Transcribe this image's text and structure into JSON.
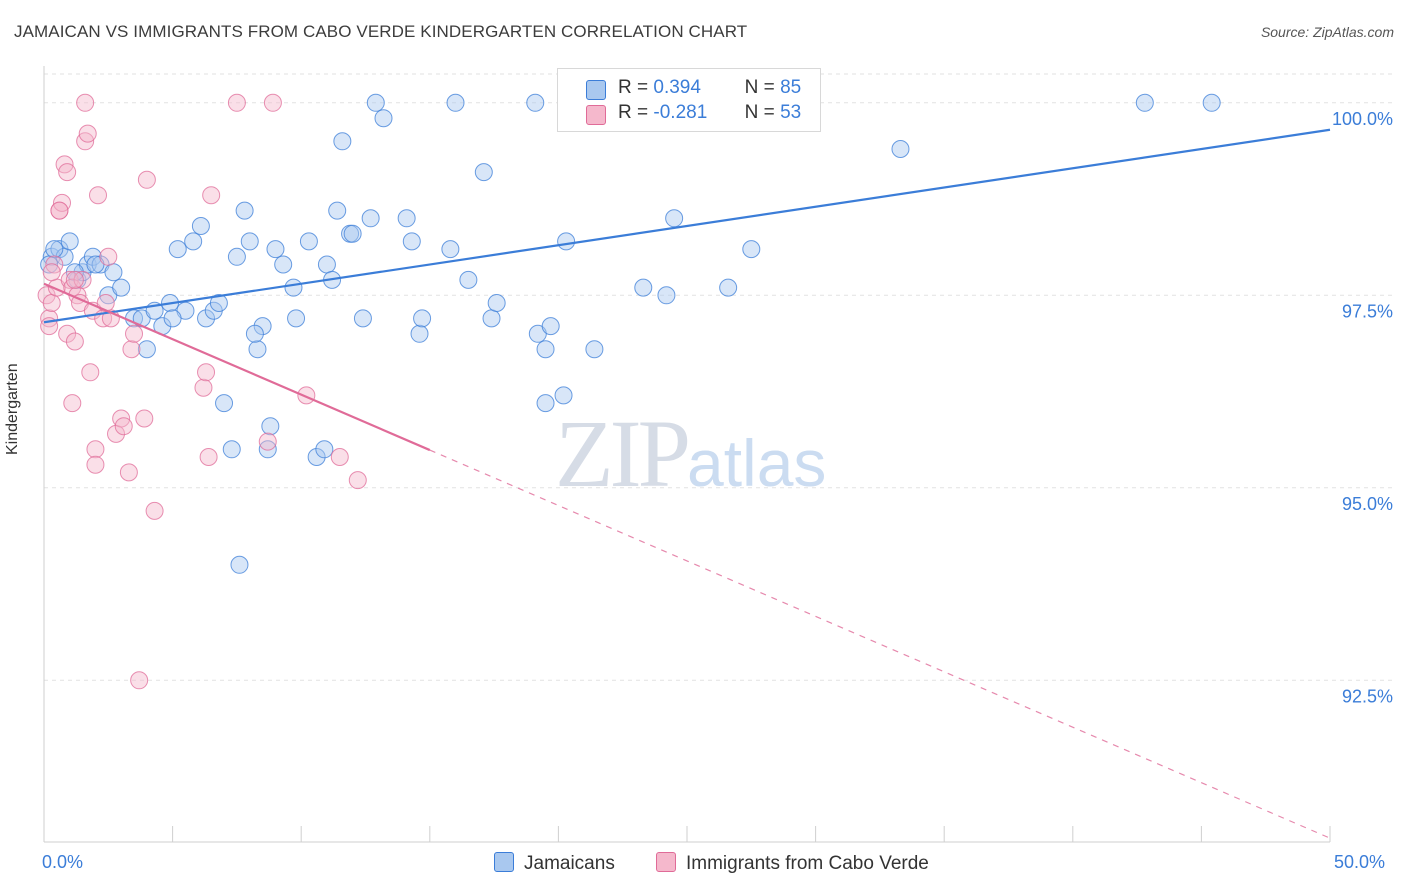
{
  "header": {
    "title": "JAMAICAN VS IMMIGRANTS FROM CABO VERDE KINDERGARTEN CORRELATION CHART",
    "source": "Source: ZipAtlas.com"
  },
  "watermark": {
    "zip": "ZIP",
    "atlas": "atlas"
  },
  "legend": {
    "r_label": "R =",
    "n_label": "N =",
    "jamaicans": {
      "r": "0.394",
      "n": "85"
    },
    "caboverde": {
      "r": "-0.281",
      "n": "53"
    }
  },
  "colors": {
    "blue": "#3b7dd8",
    "blue_fill": "#a9c8ef",
    "pink": "#e06b98",
    "pink_fill": "#f5b8cc",
    "grid": "#e2e2e2"
  },
  "chart_data": {
    "type": "scatter",
    "title": "JAMAICAN VS IMMIGRANTS FROM CABO VERDE KINDERGARTEN CORRELATION CHART",
    "xlabel": "",
    "ylabel": "Kindergarten",
    "xlim": [
      0,
      50
    ],
    "ylim": [
      90.4,
      100.4
    ],
    "x_tick_labels": [
      "0.0%",
      "50.0%"
    ],
    "y_ticks": [
      92.5,
      95.0,
      97.5,
      100.0
    ],
    "y_tick_labels": [
      "92.5%",
      "95.0%",
      "97.5%",
      "100.0%"
    ],
    "grid": true,
    "series": [
      {
        "name": "Jamaicans",
        "color": "#3b7dd8",
        "trend": {
          "x": [
            0,
            50
          ],
          "y": [
            97.15,
            99.65
          ],
          "dashed_from": null
        },
        "points": [
          [
            0.3,
            98.0
          ],
          [
            0.6,
            98.1
          ],
          [
            0.8,
            98.0
          ],
          [
            1.0,
            98.2
          ],
          [
            1.3,
            97.7
          ],
          [
            1.5,
            97.8
          ],
          [
            1.7,
            97.9
          ],
          [
            1.9,
            98.0
          ],
          [
            2.2,
            97.9
          ],
          [
            2.5,
            97.5
          ],
          [
            2.7,
            97.8
          ],
          [
            3.0,
            97.6
          ],
          [
            3.5,
            97.2
          ],
          [
            3.8,
            97.2
          ],
          [
            4.0,
            96.8
          ],
          [
            4.3,
            97.3
          ],
          [
            4.6,
            97.1
          ],
          [
            4.9,
            97.4
          ],
          [
            5.2,
            98.1
          ],
          [
            5.5,
            97.3
          ],
          [
            5.8,
            98.2
          ],
          [
            6.1,
            98.4
          ],
          [
            6.3,
            97.2
          ],
          [
            6.6,
            97.3
          ],
          [
            6.8,
            97.4
          ],
          [
            7.0,
            96.1
          ],
          [
            7.3,
            95.5
          ],
          [
            7.5,
            98.0
          ],
          [
            7.6,
            94.0
          ],
          [
            7.8,
            98.6
          ],
          [
            8.0,
            98.2
          ],
          [
            8.3,
            96.8
          ],
          [
            8.5,
            97.1
          ],
          [
            8.7,
            95.5
          ],
          [
            8.8,
            95.8
          ],
          [
            9.0,
            98.1
          ],
          [
            9.3,
            97.9
          ],
          [
            9.7,
            97.6
          ],
          [
            9.8,
            97.2
          ],
          [
            10.3,
            98.2
          ],
          [
            10.6,
            95.4
          ],
          [
            10.9,
            95.5
          ],
          [
            11.0,
            97.9
          ],
          [
            11.2,
            97.7
          ],
          [
            11.4,
            98.6
          ],
          [
            11.6,
            99.5
          ],
          [
            11.9,
            98.3
          ],
          [
            12.4,
            97.2
          ],
          [
            12.7,
            98.5
          ],
          [
            12.9,
            100.0
          ],
          [
            13.2,
            99.8
          ],
          [
            14.1,
            98.5
          ],
          [
            14.3,
            98.2
          ],
          [
            14.6,
            97.0
          ],
          [
            14.7,
            97.2
          ],
          [
            15.8,
            98.1
          ],
          [
            16.0,
            100.0
          ],
          [
            16.5,
            97.7
          ],
          [
            17.1,
            99.1
          ],
          [
            17.4,
            97.2
          ],
          [
            17.6,
            97.4
          ],
          [
            19.1,
            100.0
          ],
          [
            19.2,
            97.0
          ],
          [
            19.5,
            96.8
          ],
          [
            19.7,
            97.1
          ],
          [
            19.5,
            96.1
          ],
          [
            20.2,
            96.2
          ],
          [
            20.3,
            98.2
          ],
          [
            21.4,
            96.8
          ],
          [
            23.3,
            97.6
          ],
          [
            24.2,
            97.5
          ],
          [
            24.5,
            98.5
          ],
          [
            26.6,
            97.6
          ],
          [
            27.3,
            100.0
          ],
          [
            27.5,
            98.1
          ],
          [
            33.3,
            99.4
          ],
          [
            42.8,
            100.0
          ],
          [
            45.4,
            100.0
          ],
          [
            0.2,
            97.9
          ],
          [
            0.4,
            98.1
          ],
          [
            1.2,
            97.8
          ],
          [
            2.0,
            97.9
          ],
          [
            5.0,
            97.2
          ],
          [
            12.0,
            98.3
          ],
          [
            8.2,
            97.0
          ]
        ]
      },
      {
        "name": "Immigrants from Cabo Verde",
        "color": "#e06b98",
        "trend": {
          "x": [
            0,
            50
          ],
          "y": [
            97.65,
            90.45
          ],
          "dashed_from": 15
        },
        "points": [
          [
            0.1,
            97.5
          ],
          [
            0.2,
            97.2
          ],
          [
            0.3,
            97.4
          ],
          [
            0.4,
            97.9
          ],
          [
            0.5,
            97.6
          ],
          [
            0.6,
            98.6
          ],
          [
            0.7,
            98.7
          ],
          [
            0.8,
            99.2
          ],
          [
            0.9,
            99.1
          ],
          [
            0.9,
            97.0
          ],
          [
            1.0,
            97.7
          ],
          [
            1.1,
            96.1
          ],
          [
            1.1,
            97.6
          ],
          [
            1.2,
            96.9
          ],
          [
            1.3,
            97.5
          ],
          [
            1.4,
            97.4
          ],
          [
            1.5,
            97.7
          ],
          [
            1.6,
            99.5
          ],
          [
            1.7,
            99.6
          ],
          [
            1.8,
            96.5
          ],
          [
            1.9,
            97.3
          ],
          [
            2.0,
            95.5
          ],
          [
            2.0,
            95.3
          ],
          [
            2.1,
            98.8
          ],
          [
            2.3,
            97.2
          ],
          [
            2.5,
            98.0
          ],
          [
            2.6,
            97.2
          ],
          [
            2.8,
            95.7
          ],
          [
            3.0,
            95.9
          ],
          [
            3.1,
            95.8
          ],
          [
            3.3,
            95.2
          ],
          [
            3.4,
            96.8
          ],
          [
            3.7,
            92.5
          ],
          [
            3.9,
            95.9
          ],
          [
            4.0,
            99.0
          ],
          [
            4.3,
            94.7
          ],
          [
            6.2,
            96.3
          ],
          [
            6.3,
            96.5
          ],
          [
            6.4,
            95.4
          ],
          [
            6.5,
            98.8
          ],
          [
            7.5,
            100.0
          ],
          [
            8.7,
            95.6
          ],
          [
            8.9,
            100.0
          ],
          [
            10.2,
            96.2
          ],
          [
            11.5,
            95.4
          ],
          [
            12.2,
            95.1
          ],
          [
            0.2,
            97.1
          ],
          [
            0.6,
            98.6
          ],
          [
            1.6,
            100.0
          ],
          [
            2.4,
            97.4
          ],
          [
            0.3,
            97.8
          ],
          [
            1.2,
            97.7
          ],
          [
            3.5,
            97.0
          ]
        ]
      }
    ]
  }
}
